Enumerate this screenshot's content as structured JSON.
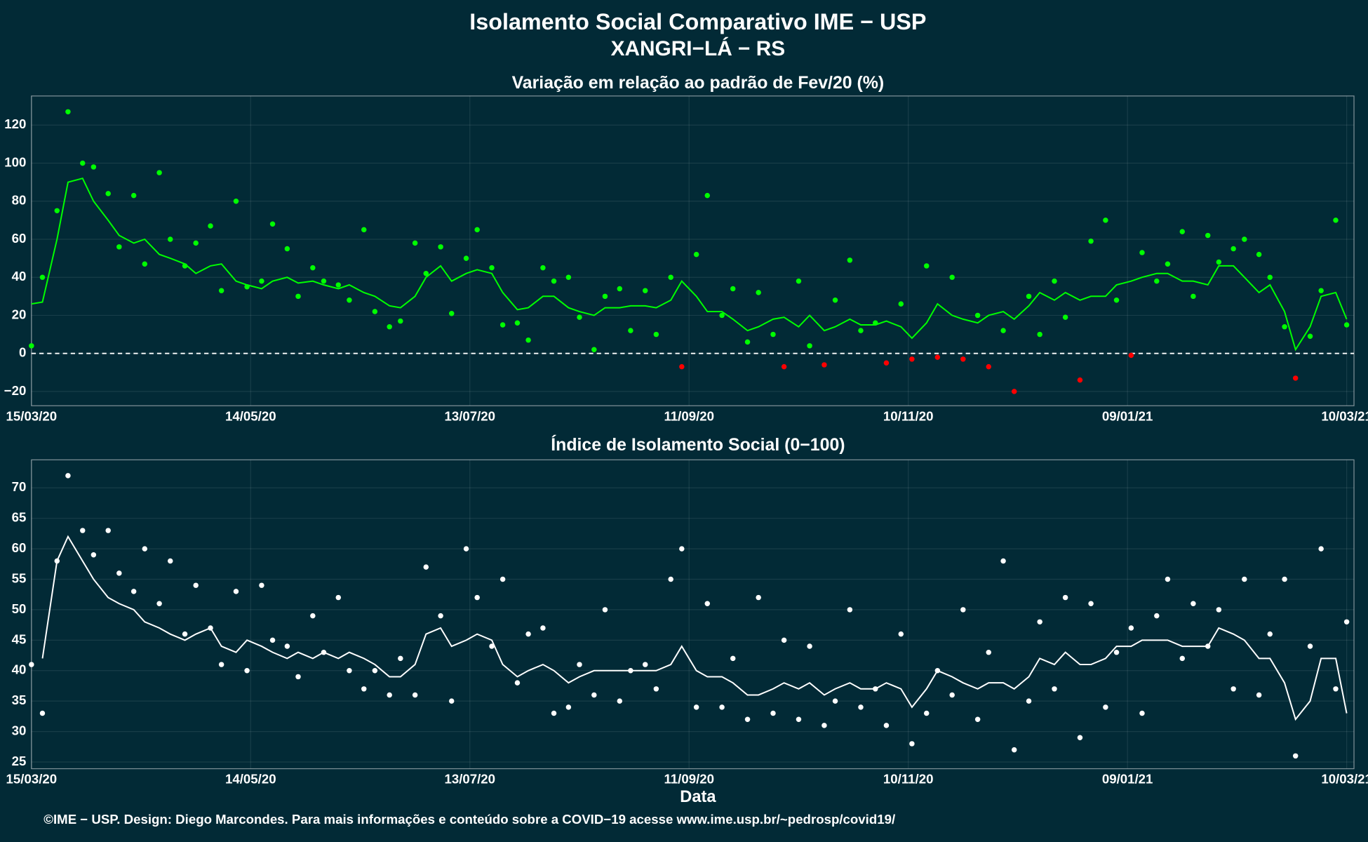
{
  "title": "Isolamento Social Comparativo IME − USP",
  "location": "XANGRI−LÁ − RS",
  "footer": "©IME − USP. Design: Diego Marcondes. Para mais informações e conteúdo sobre a COVID−19 acesse www.ime.usp.br/~pedrosp/covid19/",
  "chart_data": [
    {
      "type": "scatter-trend",
      "title": "Variação em relação ao padrão de Fev/20 (%)",
      "grid": true,
      "reference_line": 0,
      "x": [
        "15/03/20",
        "18/03/20",
        "22/03/20",
        "25/03/20",
        "29/03/20",
        "01/04/20",
        "05/04/20",
        "08/04/20",
        "12/04/20",
        "15/04/20",
        "19/04/20",
        "22/04/20",
        "26/04/20",
        "29/04/20",
        "03/05/20",
        "06/05/20",
        "10/05/20",
        "13/05/20",
        "17/05/20",
        "20/05/20",
        "24/05/20",
        "27/05/20",
        "31/05/20",
        "03/06/20",
        "07/06/20",
        "10/06/20",
        "14/06/20",
        "17/06/20",
        "21/06/20",
        "24/06/20",
        "28/06/20",
        "01/07/20",
        "05/07/20",
        "08/07/20",
        "12/07/20",
        "15/07/20",
        "19/07/20",
        "22/07/20",
        "26/07/20",
        "29/07/20",
        "02/08/20",
        "05/08/20",
        "09/08/20",
        "12/08/20",
        "16/08/20",
        "19/08/20",
        "23/08/20",
        "26/08/20",
        "30/08/20",
        "02/09/20",
        "06/09/20",
        "09/09/20",
        "13/09/20",
        "16/09/20",
        "20/09/20",
        "23/09/20",
        "27/09/20",
        "30/09/20",
        "04/10/20",
        "07/10/20",
        "11/10/20",
        "14/10/20",
        "18/10/20",
        "21/10/20",
        "25/10/20",
        "28/10/20",
        "01/11/20",
        "04/11/20",
        "08/11/20",
        "11/11/20",
        "15/11/20",
        "18/11/20",
        "22/11/20",
        "25/11/20",
        "29/11/20",
        "02/12/20",
        "06/12/20",
        "09/12/20",
        "13/12/20",
        "16/12/20",
        "20/12/20",
        "23/12/20",
        "27/12/20",
        "30/12/20",
        "03/01/21",
        "06/01/21",
        "10/01/21",
        "13/01/21",
        "17/01/21",
        "20/01/21",
        "24/01/21",
        "27/01/21",
        "31/01/21",
        "03/02/21",
        "07/02/21",
        "10/02/21",
        "14/02/21",
        "17/02/21",
        "21/02/21",
        "24/02/21",
        "28/02/21",
        "03/03/21",
        "07/03/21",
        "10/03/21"
      ],
      "points": {
        "color": "#00ff00",
        "negative_color": "#ff0000",
        "values": [
          4,
          40,
          75,
          127,
          100,
          98,
          84,
          56,
          83,
          47,
          95,
          60,
          46,
          58,
          67,
          33,
          80,
          35,
          38,
          68,
          55,
          30,
          45,
          38,
          36,
          28,
          65,
          22,
          14,
          17,
          58,
          42,
          56,
          21,
          50,
          65,
          45,
          15,
          16,
          7,
          45,
          38,
          40,
          19,
          2,
          30,
          34,
          12,
          33,
          10,
          40,
          -7,
          52,
          83,
          20,
          34,
          6,
          32,
          10,
          -7,
          38,
          4,
          -6,
          28,
          49,
          12,
          16,
          -5,
          26,
          -3,
          46,
          -2,
          40,
          -3,
          20,
          -7,
          12,
          -20,
          30,
          10,
          38,
          19,
          -14,
          59,
          70,
          28,
          -1,
          53,
          38,
          47,
          64,
          30,
          62,
          48,
          55,
          60,
          52,
          40,
          14,
          -13,
          9,
          33,
          70,
          15
        ]
      },
      "trend": {
        "color": "#00ff00",
        "values": [
          26,
          27,
          60,
          90,
          92,
          80,
          70,
          62,
          58,
          60,
          52,
          50,
          47,
          42,
          46,
          47,
          38,
          36,
          34,
          38,
          40,
          37,
          38,
          36,
          34,
          36,
          32,
          30,
          25,
          24,
          30,
          40,
          46,
          38,
          42,
          44,
          42,
          32,
          23,
          24,
          30,
          30,
          24,
          22,
          20,
          24,
          24,
          25,
          25,
          24,
          28,
          38,
          30,
          22,
          22,
          18,
          12,
          14,
          18,
          19,
          14,
          20,
          12,
          14,
          18,
          15,
          15,
          17,
          14,
          8,
          16,
          26,
          20,
          18,
          16,
          20,
          22,
          18,
          25,
          32,
          28,
          32,
          28,
          30,
          30,
          36,
          38,
          40,
          42,
          42,
          38,
          38,
          36,
          46,
          46,
          40,
          32,
          36,
          22,
          2,
          14,
          30,
          32,
          18
        ]
      },
      "xlim": [
        "15/03/20",
        "12/03/21"
      ],
      "xticks": [
        "15/03/20",
        "14/05/20",
        "13/07/20",
        "11/09/20",
        "10/11/20",
        "09/01/21",
        "10/03/21"
      ],
      "ylim": [
        -27.5,
        135.3
      ],
      "yticks": [
        {
          "value": -20,
          "label": "−20"
        },
        0,
        20,
        40,
        60,
        80,
        100,
        120
      ]
    },
    {
      "type": "scatter-trend",
      "title": "Índice de Isolamento Social (0−100)",
      "grid": true,
      "xlabel": "Data",
      "x": [
        "15/03/20",
        "18/03/20",
        "22/03/20",
        "25/03/20",
        "29/03/20",
        "01/04/20",
        "05/04/20",
        "08/04/20",
        "12/04/20",
        "15/04/20",
        "19/04/20",
        "22/04/20",
        "26/04/20",
        "29/04/20",
        "03/05/20",
        "06/05/20",
        "10/05/20",
        "13/05/20",
        "17/05/20",
        "20/05/20",
        "24/05/20",
        "27/05/20",
        "31/05/20",
        "03/06/20",
        "07/06/20",
        "10/06/20",
        "14/06/20",
        "17/06/20",
        "21/06/20",
        "24/06/20",
        "28/06/20",
        "01/07/20",
        "05/07/20",
        "08/07/20",
        "12/07/20",
        "15/07/20",
        "19/07/20",
        "22/07/20",
        "26/07/20",
        "29/07/20",
        "02/08/20",
        "05/08/20",
        "09/08/20",
        "12/08/20",
        "16/08/20",
        "19/08/20",
        "23/08/20",
        "26/08/20",
        "30/08/20",
        "02/09/20",
        "06/09/20",
        "09/09/20",
        "13/09/20",
        "16/09/20",
        "20/09/20",
        "23/09/20",
        "27/09/20",
        "30/09/20",
        "04/10/20",
        "07/10/20",
        "11/10/20",
        "14/10/20",
        "18/10/20",
        "21/10/20",
        "25/10/20",
        "28/10/20",
        "01/11/20",
        "04/11/20",
        "08/11/20",
        "11/11/20",
        "15/11/20",
        "18/11/20",
        "22/11/20",
        "25/11/20",
        "29/11/20",
        "02/12/20",
        "06/12/20",
        "09/12/20",
        "13/12/20",
        "16/12/20",
        "20/12/20",
        "23/12/20",
        "27/12/20",
        "30/12/20",
        "03/01/21",
        "06/01/21",
        "10/01/21",
        "13/01/21",
        "17/01/21",
        "20/01/21",
        "24/01/21",
        "27/01/21",
        "31/01/21",
        "03/02/21",
        "07/02/21",
        "10/02/21",
        "14/02/21",
        "17/02/21",
        "21/02/21",
        "24/02/21",
        "28/02/21",
        "03/03/21",
        "07/03/21",
        "10/03/21"
      ],
      "points": {
        "color": "#ffffff",
        "values": [
          41,
          33,
          58,
          72,
          63,
          59,
          63,
          56,
          53,
          60,
          51,
          58,
          46,
          54,
          47,
          41,
          53,
          40,
          54,
          45,
          44,
          39,
          49,
          43,
          52,
          40,
          37,
          40,
          36,
          42,
          36,
          57,
          49,
          35,
          60,
          52,
          44,
          55,
          38,
          46,
          47,
          33,
          34,
          41,
          36,
          50,
          35,
          40,
          41,
          37,
          55,
          60,
          34,
          51,
          34,
          42,
          32,
          52,
          33,
          45,
          32,
          44,
          31,
          35,
          50,
          34,
          37,
          31,
          46,
          28,
          33,
          40,
          36,
          50,
          32,
          43,
          58,
          27,
          35,
          48,
          37,
          52,
          29,
          51,
          34,
          43,
          47,
          33,
          49,
          55,
          42,
          51,
          44,
          50,
          37,
          55,
          36,
          46,
          55,
          26,
          44,
          60,
          37,
          48
        ]
      },
      "trend": {
        "color": "#ffffff",
        "values": [
          null,
          42,
          58,
          62,
          58,
          55,
          52,
          51,
          50,
          48,
          47,
          46,
          45,
          46,
          47,
          44,
          43,
          45,
          44,
          43,
          42,
          43,
          42,
          43,
          42,
          43,
          42,
          41,
          39,
          39,
          41,
          46,
          47,
          44,
          45,
          46,
          45,
          41,
          39,
          40,
          41,
          40,
          38,
          39,
          40,
          40,
          40,
          40,
          40,
          40,
          41,
          44,
          40,
          39,
          39,
          38,
          36,
          36,
          37,
          38,
          37,
          38,
          36,
          37,
          38,
          37,
          37,
          38,
          37,
          34,
          37,
          40,
          39,
          38,
          37,
          38,
          38,
          37,
          39,
          42,
          41,
          43,
          41,
          41,
          42,
          44,
          44,
          45,
          45,
          45,
          44,
          44,
          44,
          47,
          46,
          45,
          42,
          42,
          38,
          32,
          35,
          42,
          42,
          33
        ]
      },
      "xlim": [
        "15/03/20",
        "12/03/21"
      ],
      "xticks": [
        "15/03/20",
        "14/05/20",
        "13/07/20",
        "11/09/20",
        "10/11/20",
        "09/01/21",
        "10/03/21"
      ],
      "ylim": [
        23.9,
        74.6
      ],
      "yticks": [
        25,
        30,
        35,
        40,
        45,
        50,
        55,
        60,
        65,
        70
      ]
    }
  ]
}
